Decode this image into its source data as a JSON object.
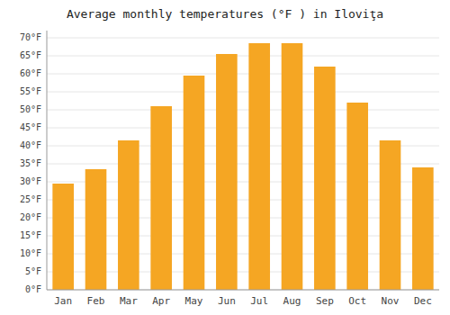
{
  "chart_data": {
    "type": "bar",
    "title": "Average monthly temperatures (°F ) in Iloviţa",
    "categories": [
      "Jan",
      "Feb",
      "Mar",
      "Apr",
      "May",
      "Jun",
      "Jul",
      "Aug",
      "Sep",
      "Oct",
      "Nov",
      "Dec"
    ],
    "values": [
      29.5,
      33.5,
      41.5,
      51.0,
      59.5,
      65.5,
      68.5,
      68.5,
      62.0,
      52.0,
      41.5,
      34.0
    ],
    "color": "#F5A623",
    "ylim": [
      0,
      72
    ],
    "yticks": [
      {
        "value": 0,
        "label": "0°F"
      },
      {
        "value": 5,
        "label": "5°F"
      },
      {
        "value": 10,
        "label": "10°F"
      },
      {
        "value": 15,
        "label": "15°F"
      },
      {
        "value": 20,
        "label": "20°F"
      },
      {
        "value": 25,
        "label": "25°F"
      },
      {
        "value": 30,
        "label": "30°F"
      },
      {
        "value": 35,
        "label": "35°F"
      },
      {
        "value": 40,
        "label": "40°F"
      },
      {
        "value": 45,
        "label": "45°F"
      },
      {
        "value": 50,
        "label": "50°F"
      },
      {
        "value": 55,
        "label": "55°F"
      },
      {
        "value": 60,
        "label": "60°F"
      },
      {
        "value": 65,
        "label": "65°F"
      },
      {
        "value": 70,
        "label": "70°F"
      }
    ],
    "grid": true
  }
}
